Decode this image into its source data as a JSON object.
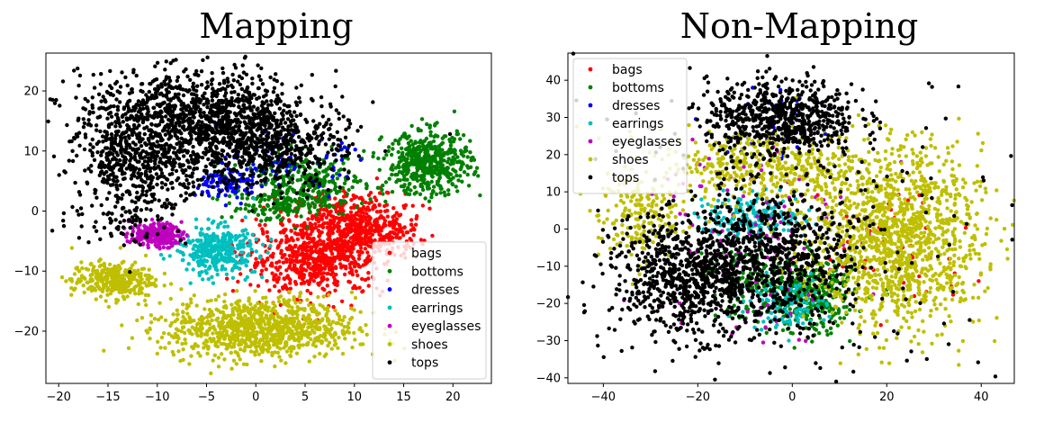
{
  "colors": {
    "bags": "#ff0000",
    "bottoms": "#008000",
    "dresses": "#0000ff",
    "earrings": "#00bfbf",
    "eyeglasses": "#bf00bf",
    "shoes": "#bfbf00",
    "tops": "#000000"
  },
  "chart_data": [
    {
      "type": "scatter",
      "title": "Mapping",
      "xlabel": "",
      "ylabel": "",
      "xlim": [
        -21.3,
        23.9
      ],
      "ylim": [
        -28.7,
        26.3
      ],
      "xticks": [
        -20,
        -15,
        -10,
        -5,
        0,
        5,
        10,
        15,
        20
      ],
      "yticks": [
        -20,
        -10,
        0,
        10,
        20
      ],
      "xtick_labels": [
        "−20",
        "−15",
        "−10",
        "−5",
        "0",
        "5",
        "10",
        "15",
        "20"
      ],
      "ytick_labels": [
        "−20",
        "−10",
        "0",
        "10",
        "20"
      ],
      "grid": false,
      "legend": "lower-right",
      "series": [
        {
          "name": "bags",
          "clusters": [
            {
              "cx": 9.5,
              "cy": -2,
              "sx": 2.8,
              "sy": 2.5,
              "n": 420
            },
            {
              "cx": 6,
              "cy": -8,
              "sx": 3.5,
              "sy": 3,
              "n": 600
            },
            {
              "cx": 13,
              "cy": -4,
              "sx": 1.8,
              "sy": 1.5,
              "n": 120
            }
          ]
        },
        {
          "name": "bottoms",
          "clusters": [
            {
              "cx": 17.5,
              "cy": 8,
              "sx": 2.2,
              "sy": 2.6,
              "n": 500
            },
            {
              "cx": 5,
              "cy": 4.5,
              "sx": 3,
              "sy": 2.5,
              "n": 320
            },
            {
              "cx": 1,
              "cy": 1,
              "sx": 2.5,
              "sy": 1.5,
              "n": 90
            }
          ]
        },
        {
          "name": "dresses",
          "clusters": [
            {
              "cx": -2.5,
              "cy": 4.5,
              "sx": 1.6,
              "sy": 1.3,
              "n": 90
            },
            {
              "cx": 3,
              "cy": 8,
              "sx": 3,
              "sy": 2,
              "n": 70
            }
          ]
        },
        {
          "name": "earrings",
          "clusters": [
            {
              "cx": -4,
              "cy": -6.5,
              "sx": 2,
              "sy": 2,
              "n": 360
            }
          ]
        },
        {
          "name": "eyeglasses",
          "clusters": [
            {
              "cx": -10.2,
              "cy": -4,
              "sx": 1.3,
              "sy": 1,
              "n": 220
            }
          ]
        },
        {
          "name": "shoes",
          "clusters": [
            {
              "cx": 0.5,
              "cy": -19.5,
              "sx": 4.8,
              "sy": 2.5,
              "n": 950
            },
            {
              "cx": -14.5,
              "cy": -11.5,
              "sx": 2.1,
              "sy": 1.5,
              "n": 320
            }
          ]
        },
        {
          "name": "tops",
          "clusters": [
            {
              "cx": -6,
              "cy": 16,
              "sx": 6,
              "sy": 3.5,
              "n": 1100
            },
            {
              "cx": -11,
              "cy": 8,
              "sx": 3.5,
              "sy": 3,
              "n": 450
            },
            {
              "cx": 1,
              "cy": 10,
              "sx": 4,
              "sy": 3,
              "n": 500
            },
            {
              "cx": -13,
              "cy": 0,
              "sx": 3,
              "sy": 3,
              "n": 120
            }
          ]
        }
      ]
    },
    {
      "type": "scatter",
      "title": "Non-Mapping",
      "xlabel": "",
      "ylabel": "",
      "xlim": [
        -47.5,
        47
      ],
      "ylim": [
        -41.5,
        47.3
      ],
      "xticks": [
        -40,
        -20,
        0,
        20,
        40
      ],
      "yticks": [
        -40,
        -30,
        -20,
        -10,
        0,
        10,
        20,
        30,
        40
      ],
      "xtick_labels": [
        "−40",
        "−20",
        "0",
        "20",
        "40"
      ],
      "ytick_labels": [
        "−40",
        "−30",
        "−20",
        "−10",
        "0",
        "10",
        "20",
        "30",
        "40"
      ],
      "grid": false,
      "legend": "upper-left",
      "series": [
        {
          "name": "bags",
          "clusters": [
            {
              "cx": 22,
              "cy": -5,
              "sx": 8,
              "sy": 9,
              "n": 50
            }
          ]
        },
        {
          "name": "bottoms",
          "clusters": [
            {
              "cx": 4,
              "cy": -18,
              "sx": 4.5,
              "sy": 5,
              "n": 360
            },
            {
              "cx": -8,
              "cy": -14,
              "sx": 5,
              "sy": 5,
              "n": 140
            }
          ]
        },
        {
          "name": "dresses",
          "clusters": [
            {
              "cx": -2,
              "cy": 28,
              "sx": 6,
              "sy": 6,
              "n": 30
            }
          ]
        },
        {
          "name": "earrings",
          "clusters": [
            {
              "cx": -8,
              "cy": 3,
              "sx": 6,
              "sy": 3,
              "n": 200
            },
            {
              "cx": -1,
              "cy": -20,
              "sx": 4,
              "sy": 3.5,
              "n": 130
            }
          ]
        },
        {
          "name": "eyeglasses",
          "clusters": [
            {
              "cx": -10,
              "cy": 0,
              "sx": 10,
              "sy": 15,
              "n": 120
            }
          ]
        },
        {
          "name": "shoes",
          "clusters": [
            {
              "cx": 22,
              "cy": -3,
              "sx": 9,
              "sy": 12,
              "n": 1300
            },
            {
              "cx": -5,
              "cy": 17,
              "sx": 12,
              "sy": 5,
              "n": 450
            },
            {
              "cx": -33,
              "cy": 3,
              "sx": 4,
              "sy": 6,
              "n": 180
            }
          ]
        },
        {
          "name": "tops",
          "clusters": [
            {
              "cx": -2,
              "cy": 30,
              "sx": 8,
              "sy": 5,
              "n": 650
            },
            {
              "cx": -22,
              "cy": -13,
              "sx": 8,
              "sy": 8,
              "n": 800
            },
            {
              "cx": -4,
              "cy": -8,
              "sx": 8,
              "sy": 8,
              "n": 550
            },
            {
              "cx": 0,
              "cy": 0,
              "sx": 22,
              "sy": 22,
              "n": 320
            }
          ]
        }
      ]
    }
  ]
}
